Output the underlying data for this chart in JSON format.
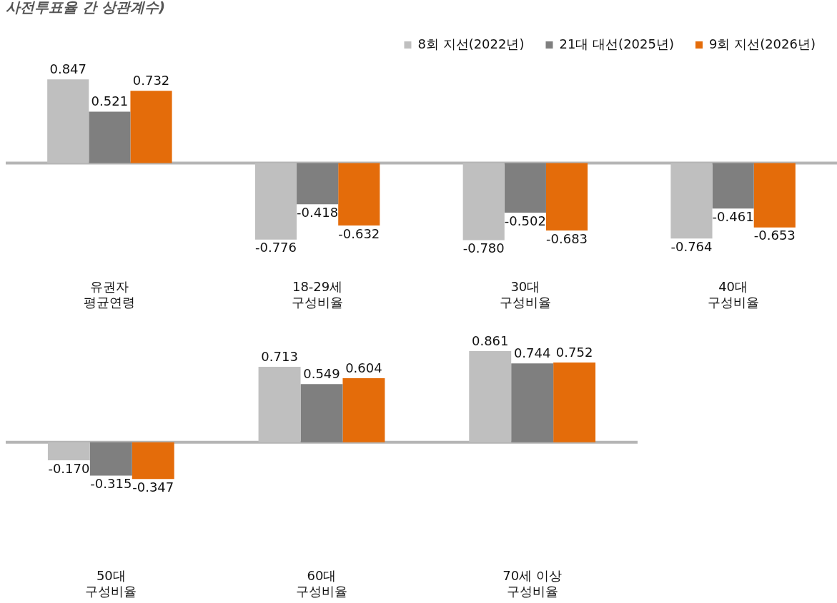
{
  "chart_data": [
    {
      "type": "bar",
      "title": "사전투표율 간 상관계수)",
      "categories": [
        "유권자\n평균연령",
        "18-29세\n구성비율",
        "30대\n구성비율",
        "40대\n구성비율"
      ],
      "series": [
        {
          "name": "8회 지선(2022년)",
          "color": "#bfbfbf",
          "values": [
            0.847,
            -0.776,
            -0.78,
            -0.764
          ],
          "value_labels": [
            "0.847",
            "-0.776",
            "-0.780",
            "-0.764"
          ]
        },
        {
          "name": "21대 대선(2025년)",
          "color": "#7f7f7f",
          "values": [
            0.521,
            -0.418,
            -0.502,
            -0.461
          ],
          "value_labels": [
            "0.521",
            "-0.418",
            "-0.502",
            "-0.461"
          ]
        },
        {
          "name": "9회 지선(2026년)",
          "color": "#e46c0a",
          "values": [
            0.732,
            -0.632,
            -0.683,
            -0.653
          ],
          "value_labels": [
            "0.732",
            "-0.632",
            "-0.683",
            "-0.653"
          ]
        }
      ],
      "legend": "top right",
      "grid": false,
      "ref_lines": [
        {
          "axis": "y",
          "value": 0,
          "color": "#b5b5b5"
        }
      ]
    },
    {
      "type": "bar",
      "categories": [
        "50대\n구성비율",
        "60대\n구성비율",
        "70세 이상\n구성비율"
      ],
      "series": [
        {
          "color": "#bfbfbf",
          "values": [
            -0.17,
            0.713,
            0.861
          ],
          "value_labels": [
            "-0.170",
            "0.713",
            "0.861"
          ]
        },
        {
          "color": "#7f7f7f",
          "values": [
            -0.315,
            0.549,
            0.744
          ],
          "value_labels": [
            "-0.315",
            "0.549",
            "0.744"
          ]
        },
        {
          "color": "#e46c0a",
          "values": [
            -0.347,
            0.604,
            0.752
          ],
          "value_labels": [
            "-0.347",
            "0.604",
            "0.752"
          ]
        }
      ],
      "grid": false,
      "ref_lines": [
        {
          "axis": "y",
          "value": 0,
          "color": "#b5b5b5"
        }
      ]
    }
  ]
}
